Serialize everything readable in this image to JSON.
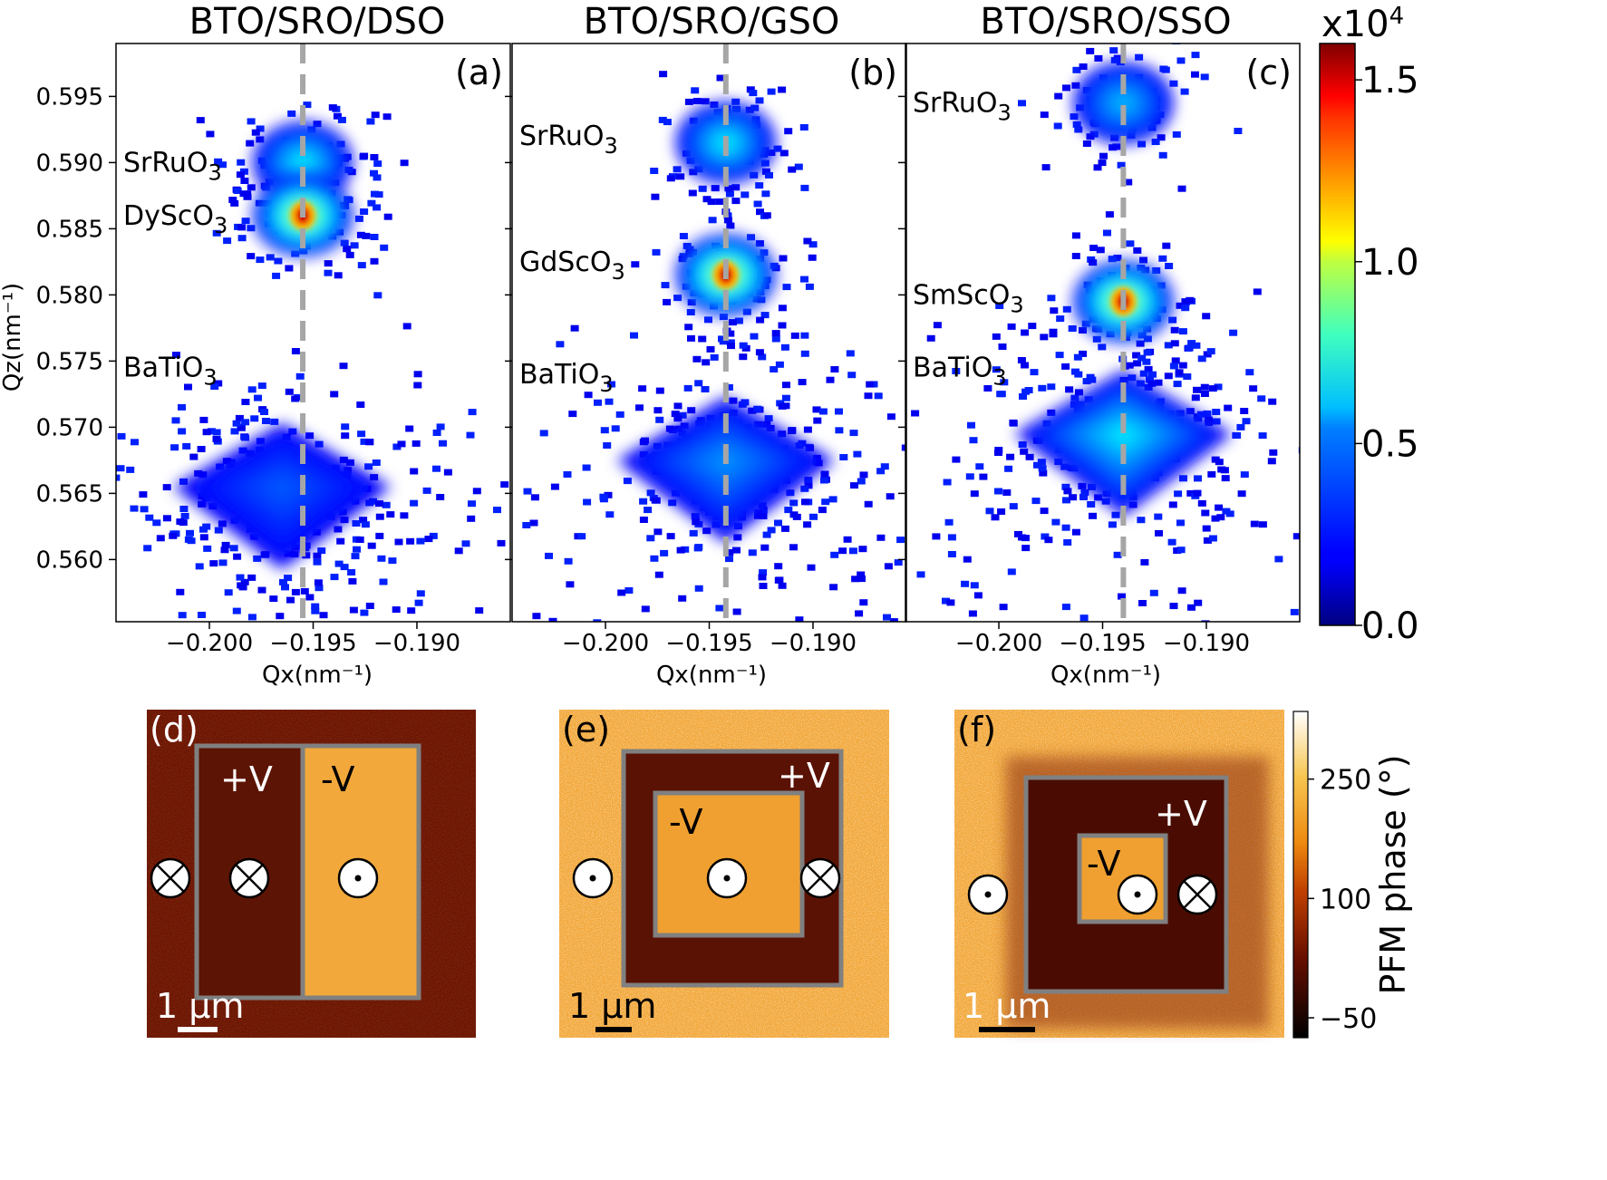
{
  "chart_data": [
    {
      "type": "heatmap",
      "panel": "(a)",
      "title": "BTO/SRO/DSO",
      "xlabel": "Qx(nm⁻¹)",
      "ylabel": "Qz(nm⁻¹)",
      "xlim": [
        -0.2045,
        -0.1855
      ],
      "ylim": [
        0.5553,
        0.599
      ],
      "xticks": [
        -0.2,
        -0.195,
        -0.19
      ],
      "xtick_labels": [
        "−0.200",
        "−0.195",
        "−0.190"
      ],
      "yticks": [
        0.56,
        0.565,
        0.57,
        0.575,
        0.58,
        0.585,
        0.59,
        0.595
      ],
      "ytick_labels": [
        "0.560",
        "0.565",
        "0.570",
        "0.575",
        "0.580",
        "0.585",
        "0.590",
        "0.595"
      ],
      "reference_line_qx": -0.1955,
      "peaks": [
        {
          "name": "SrRuO",
          "sub": "3",
          "qx": -0.1955,
          "qz": 0.59,
          "intensity": 9000,
          "label_qx": -0.2045,
          "label_qz": 0.59
        },
        {
          "name": "DyScO",
          "sub": "3",
          "qx": -0.1955,
          "qz": 0.586,
          "intensity": 15000,
          "label_qx": -0.2045,
          "label_qz": 0.586
        },
        {
          "name": "BaTiO",
          "sub": "3",
          "qx": -0.1965,
          "qz": 0.5655,
          "intensity": 3500,
          "label_qx": -0.2045,
          "label_qz": 0.5745
        }
      ]
    },
    {
      "type": "heatmap",
      "panel": "(b)",
      "title": "BTO/SRO/GSO",
      "xlabel": "Qx(nm⁻¹)",
      "xlim": [
        -0.2045,
        -0.1855
      ],
      "ylim": [
        0.5553,
        0.599
      ],
      "xticks": [
        -0.2,
        -0.195,
        -0.19
      ],
      "xtick_labels": [
        "−0.200",
        "−0.195",
        "−0.190"
      ],
      "reference_line_qx": -0.1942,
      "peaks": [
        {
          "name": "SrRuO",
          "sub": "3",
          "qx": -0.1942,
          "qz": 0.5915,
          "intensity": 9000,
          "label_qx": -0.2045,
          "label_qz": 0.592
        },
        {
          "name": "GdScO",
          "sub": "3",
          "qx": -0.1942,
          "qz": 0.5815,
          "intensity": 15000,
          "label_qx": -0.2045,
          "label_qz": 0.5825
        },
        {
          "name": "BaTiO",
          "sub": "3",
          "qx": -0.1942,
          "qz": 0.5675,
          "intensity": 4500,
          "label_qx": -0.2045,
          "label_qz": 0.574
        }
      ]
    },
    {
      "type": "heatmap",
      "panel": "(c)",
      "title": "BTO/SRO/SSO",
      "xlabel": "Qx(nm⁻¹)",
      "xlim": [
        -0.2045,
        -0.1855
      ],
      "ylim": [
        0.5553,
        0.599
      ],
      "xticks": [
        -0.2,
        -0.195,
        -0.19
      ],
      "xtick_labels": [
        "−0.200",
        "−0.195",
        "−0.190"
      ],
      "reference_line_qx": -0.194,
      "peaks": [
        {
          "name": "SrRuO",
          "sub": "3",
          "qx": -0.194,
          "qz": 0.5945,
          "intensity": 7500,
          "label_qx": -0.2045,
          "label_qz": 0.5945
        },
        {
          "name": "SmScO",
          "sub": "3",
          "qx": -0.194,
          "qz": 0.5795,
          "intensity": 15000,
          "label_qx": -0.2045,
          "label_qz": 0.58
        },
        {
          "name": "BaTiO",
          "sub": "3",
          "qx": -0.194,
          "qz": 0.5695,
          "intensity": 6000,
          "label_qx": -0.2045,
          "label_qz": 0.5745
        }
      ]
    },
    {
      "type": "heatmap",
      "role": "colorbar",
      "colormap": "jet",
      "range": [
        0,
        16000
      ],
      "exponent_label": "x10",
      "exponent_sup": "4",
      "ticks": [
        0,
        5000,
        10000,
        15000
      ],
      "tick_labels": [
        "0.0",
        "0.5",
        "1.0",
        "1.5"
      ]
    },
    {
      "type": "heatmap",
      "role": "pfm",
      "panel": "(d)",
      "voltage_labels": [
        "+V",
        "-V"
      ],
      "scale_bar": "1 μm",
      "symbols": [
        "into-page",
        "into-page",
        "out-of-page"
      ]
    },
    {
      "type": "heatmap",
      "role": "pfm",
      "panel": "(e)",
      "voltage_labels": [
        "+V",
        "-V"
      ],
      "scale_bar": "1 μm",
      "symbols": [
        "out-of-page",
        "out-of-page",
        "into-page"
      ]
    },
    {
      "type": "heatmap",
      "role": "pfm",
      "panel": "(f)",
      "voltage_labels": [
        "+V",
        "-V"
      ],
      "scale_bar": "1 μm",
      "symbols": [
        "out-of-page",
        "out-of-page",
        "into-page"
      ]
    },
    {
      "type": "heatmap",
      "role": "pfm-colorbar",
      "label": "PFM phase (°)",
      "range": [
        -75,
        335
      ],
      "ticks": [
        -50,
        100,
        250
      ],
      "tick_labels": [
        "−50",
        "100",
        "250"
      ]
    }
  ]
}
